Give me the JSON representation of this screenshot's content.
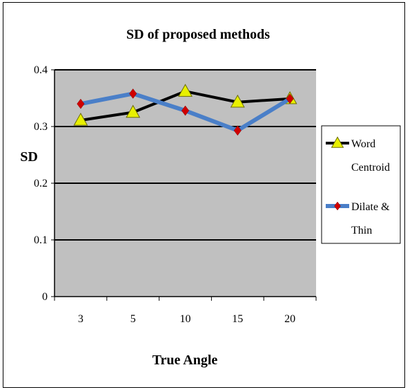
{
  "chart_data": {
    "type": "line",
    "title": "SD of proposed methods",
    "xlabel": "True Angle",
    "ylabel": "SD",
    "categories": [
      "3",
      "5",
      "10",
      "15",
      "20"
    ],
    "ylim": [
      0,
      0.4
    ],
    "yticks": [
      "0",
      "0.1",
      "0.2",
      "0.3",
      "0.4"
    ],
    "grid": "horizontal major lines",
    "plot_background": "#c0c0c0",
    "legend_position": "right",
    "series": [
      {
        "name_lines": [
          "Word",
          "Centroid"
        ],
        "values": [
          0.311,
          0.325,
          0.362,
          0.343,
          0.349
        ],
        "line_color": "#000000",
        "marker": "triangle",
        "marker_color": "#e8f000"
      },
      {
        "name_lines": [
          "Dilate &",
          "Thin"
        ],
        "values": [
          0.34,
          0.358,
          0.328,
          0.293,
          0.349
        ],
        "line_color": "#4a7fc8",
        "marker": "diamond",
        "marker_color": "#d00000"
      }
    ]
  }
}
